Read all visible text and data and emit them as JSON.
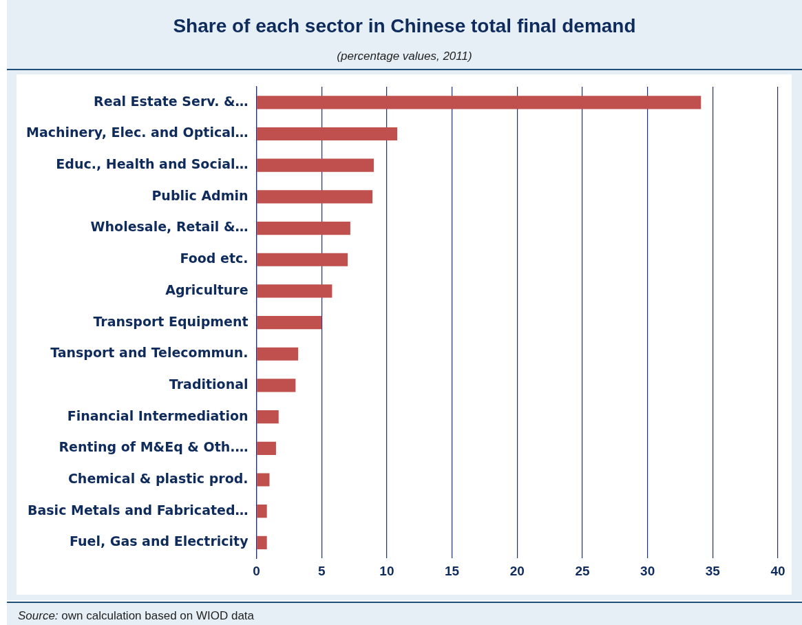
{
  "chart_data": {
    "type": "bar",
    "title": "Share of each sector in Chinese total final demand",
    "subtitle": "(percentage values, 2011)",
    "orientation": "horizontal",
    "categories": [
      "Real Estate Serv. &…",
      "Machinery, Elec. and Optical…",
      "Educ., Health and Social…",
      "Public Admin",
      "Wholesale, Retail &…",
      "Food etc.",
      "Agriculture",
      "Transport Equipment",
      "Tansport and Telecommun.",
      "Traditional",
      "Financial Intermediation",
      "Renting of M&Eq & Oth.…",
      "Chemical & plastic prod.",
      "Basic Metals and Fabricated…",
      "Fuel, Gas and Electricity"
    ],
    "values": [
      34.1,
      10.8,
      9.0,
      8.9,
      7.2,
      7.0,
      5.8,
      5.0,
      3.2,
      3.0,
      1.7,
      1.5,
      1.0,
      0.8,
      0.8
    ],
    "color": "#c0504d",
    "xlim": [
      0,
      40
    ],
    "xticks": [
      0,
      5,
      10,
      15,
      20,
      25,
      30,
      35,
      40
    ],
    "grid": "x",
    "legend": false,
    "annotations": [
      "Source: own calculation based on WIOD data"
    ]
  }
}
